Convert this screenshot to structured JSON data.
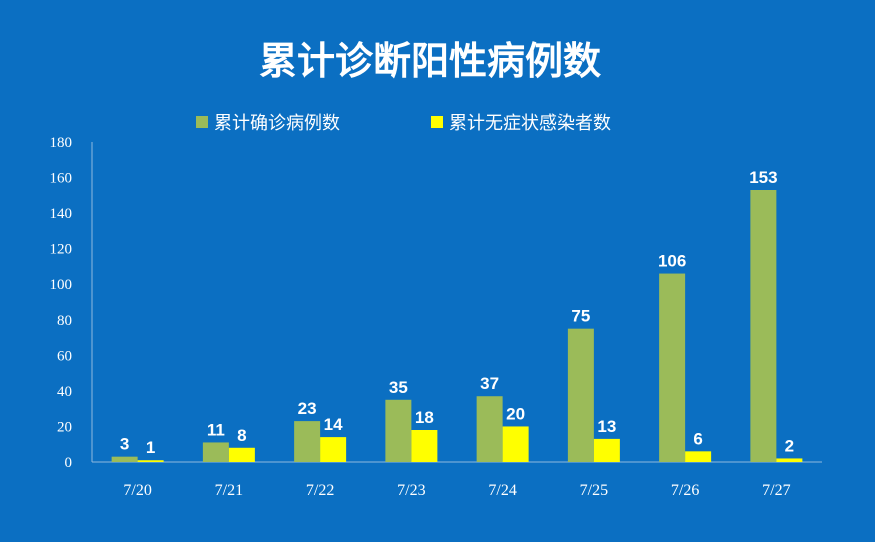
{
  "chart_data": {
    "type": "bar",
    "title": "累计诊断阳性病例数",
    "categories": [
      "7/20",
      "7/21",
      "7/22",
      "7/23",
      "7/24",
      "7/25",
      "7/26",
      "7/27"
    ],
    "series": [
      {
        "name": "累计确诊病例数",
        "values": [
          3,
          11,
          23,
          35,
          37,
          75,
          106,
          153
        ],
        "color": "#9bbb59"
      },
      {
        "name": "累计无症状感染者数",
        "values": [
          1,
          8,
          14,
          18,
          20,
          13,
          6,
          2
        ],
        "color": "#ffff00"
      }
    ],
    "yticks": [
      "0",
      "20",
      "40",
      "60",
      "80",
      "100",
      "120",
      "140",
      "160",
      "180"
    ],
    "ylim": [
      0,
      180
    ],
    "legend_position": "top",
    "grid": false,
    "data_labels": true
  },
  "colors": {
    "background": "#0b6fc2",
    "text": "#ffffff"
  }
}
